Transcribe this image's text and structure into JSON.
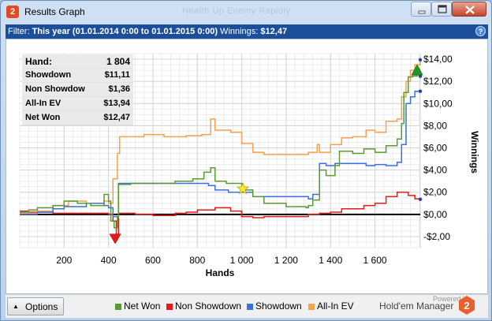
{
  "window": {
    "title": "Results Graph",
    "app_icon_glyph": "2",
    "background_title_text": "Health Up Enemy    Rapidly",
    "min_icon": "minimize-icon",
    "max_icon": "maximize-icon",
    "close_icon": "close-icon"
  },
  "filter": {
    "prefix": "Filter: ",
    "value": "This year (01.01.2014 0:00 to 01.01.2015 0:00)",
    "winnings_label": "  Winnings: ",
    "winnings_value": "$12,47",
    "help_glyph": "?"
  },
  "stats": [
    {
      "label": "Hand:",
      "value": "1 804"
    },
    {
      "label": "Showdown",
      "value": "$11,11"
    },
    {
      "label": "Non Showdown",
      "value": "$1,36"
    },
    {
      "label": "All-In EV",
      "value": "$13,94"
    },
    {
      "label": "Net Won",
      "value": "$12,47"
    }
  ],
  "bottom": {
    "options_label": "Options",
    "options_arrow": "▲",
    "powered_by": "Powered by",
    "brand": "Hold'em Manager",
    "brand_logo_glyph": "2"
  },
  "colors": {
    "net_won": "#5a9a31",
    "non_showdown": "#e51b1b",
    "showdown": "#3c6fe0",
    "all_in_ev": "#f5a04e",
    "filter_bar": "#1d4e9a"
  },
  "chart_data": {
    "type": "line",
    "xlabel": "Hands",
    "ylabel": "Winnings",
    "xlim": [
      0,
      1804
    ],
    "ylim": [
      -3,
      14.5
    ],
    "x_ticks": [
      200,
      400,
      600,
      800,
      1000,
      1200,
      1400,
      1600
    ],
    "x_tick_labels": [
      "200",
      "400",
      "600",
      "800",
      "1 000",
      "1 200",
      "1 400",
      "1 600"
    ],
    "y_ticks": [
      -2,
      0,
      2,
      4,
      6,
      8,
      10,
      12,
      14
    ],
    "y_tick_labels": [
      "-$2,00",
      "$0,00",
      "$2,00",
      "$4,00",
      "$6,00",
      "$8,00",
      "$10,00",
      "$12,00",
      "$14,00"
    ],
    "grid": true,
    "legend_position": "bottom",
    "series": [
      {
        "name": "Net Won",
        "color": "#5a9a31",
        "points": [
          [
            0,
            0.2
          ],
          [
            40,
            0.4
          ],
          [
            80,
            0.6
          ],
          [
            150,
            0.8
          ],
          [
            200,
            1.2
          ],
          [
            260,
            1.0
          ],
          [
            320,
            0.8
          ],
          [
            380,
            1.8
          ],
          [
            400,
            1.2
          ],
          [
            410,
            -0.6
          ],
          [
            425,
            -1.2
          ],
          [
            440,
            -0.3
          ],
          [
            445,
            2.7
          ],
          [
            500,
            2.8
          ],
          [
            600,
            2.8
          ],
          [
            700,
            3.0
          ],
          [
            780,
            3.2
          ],
          [
            830,
            3.8
          ],
          [
            860,
            4.2
          ],
          [
            880,
            3.0
          ],
          [
            930,
            2.8
          ],
          [
            1000,
            2.2
          ],
          [
            1050,
            1.6
          ],
          [
            1100,
            1.0
          ],
          [
            1200,
            0.7
          ],
          [
            1290,
            0.6
          ],
          [
            1300,
            0.8
          ],
          [
            1320,
            1.3
          ],
          [
            1350,
            4.0
          ],
          [
            1380,
            3.5
          ],
          [
            1420,
            4.4
          ],
          [
            1440,
            5.7
          ],
          [
            1500,
            5.5
          ],
          [
            1550,
            5.9
          ],
          [
            1600,
            5.6
          ],
          [
            1650,
            6.2
          ],
          [
            1700,
            6.8
          ],
          [
            1720,
            8.2
          ],
          [
            1730,
            11.0
          ],
          [
            1750,
            12.4
          ],
          [
            1770,
            12.47
          ],
          [
            1790,
            12.9
          ],
          [
            1804,
            12.47
          ]
        ]
      },
      {
        "name": "Non Showdown",
        "color": "#e51b1b",
        "points": [
          [
            0,
            0.3
          ],
          [
            40,
            0.2
          ],
          [
            80,
            0.2
          ],
          [
            150,
            0.1
          ],
          [
            250,
            0.1
          ],
          [
            350,
            0.1
          ],
          [
            400,
            0.0
          ],
          [
            420,
            -0.6
          ],
          [
            435,
            -1.8
          ],
          [
            445,
            0.1
          ],
          [
            520,
            0.0
          ],
          [
            600,
            -0.1
          ],
          [
            700,
            0.1
          ],
          [
            750,
            0.2
          ],
          [
            800,
            0.4
          ],
          [
            880,
            0.6
          ],
          [
            950,
            0.3
          ],
          [
            1000,
            -0.2
          ],
          [
            1050,
            -0.3
          ],
          [
            1100,
            -0.2
          ],
          [
            1200,
            -0.2
          ],
          [
            1300,
            0.0
          ],
          [
            1350,
            0.1
          ],
          [
            1400,
            0.2
          ],
          [
            1450,
            0.5
          ],
          [
            1500,
            0.5
          ],
          [
            1550,
            0.8
          ],
          [
            1600,
            1.0
          ],
          [
            1650,
            1.6
          ],
          [
            1700,
            2.0
          ],
          [
            1750,
            1.7
          ],
          [
            1780,
            1.4
          ],
          [
            1804,
            1.36
          ]
        ]
      },
      {
        "name": "Showdown",
        "color": "#3c6fe0",
        "points": [
          [
            0,
            0.0
          ],
          [
            80,
            0.2
          ],
          [
            150,
            0.5
          ],
          [
            200,
            0.7
          ],
          [
            300,
            1.0
          ],
          [
            380,
            0.8
          ],
          [
            400,
            0.6
          ],
          [
            420,
            -0.2
          ],
          [
            445,
            2.8
          ],
          [
            500,
            2.8
          ],
          [
            600,
            2.8
          ],
          [
            700,
            2.8
          ],
          [
            800,
            2.8
          ],
          [
            850,
            2.6
          ],
          [
            880,
            2.2
          ],
          [
            940,
            2.0
          ],
          [
            1000,
            2.0
          ],
          [
            1050,
            1.6
          ],
          [
            1100,
            1.6
          ],
          [
            1200,
            1.6
          ],
          [
            1300,
            1.4
          ],
          [
            1320,
            1.8
          ],
          [
            1350,
            4.6
          ],
          [
            1380,
            4.4
          ],
          [
            1420,
            4.6
          ],
          [
            1460,
            4.6
          ],
          [
            1500,
            4.6
          ],
          [
            1560,
            4.4
          ],
          [
            1600,
            4.5
          ],
          [
            1650,
            4.4
          ],
          [
            1700,
            4.7
          ],
          [
            1720,
            6.3
          ],
          [
            1740,
            10.0
          ],
          [
            1760,
            10.6
          ],
          [
            1780,
            11.1
          ],
          [
            1804,
            11.11
          ]
        ]
      },
      {
        "name": "All-In EV",
        "color": "#f5a04e",
        "points": [
          [
            0,
            0.1
          ],
          [
            80,
            0.3
          ],
          [
            150,
            0.8
          ],
          [
            220,
            1.2
          ],
          [
            300,
            1.0
          ],
          [
            380,
            1.2
          ],
          [
            400,
            1.0
          ],
          [
            420,
            3.2
          ],
          [
            440,
            5.5
          ],
          [
            450,
            7.0
          ],
          [
            500,
            7.0
          ],
          [
            560,
            7.2
          ],
          [
            650,
            7.0
          ],
          [
            750,
            7.1
          ],
          [
            820,
            7.2
          ],
          [
            860,
            8.6
          ],
          [
            880,
            7.6
          ],
          [
            950,
            7.4
          ],
          [
            1000,
            6.4
          ],
          [
            1050,
            5.6
          ],
          [
            1100,
            5.4
          ],
          [
            1200,
            5.4
          ],
          [
            1300,
            5.6
          ],
          [
            1340,
            6.3
          ],
          [
            1350,
            5.6
          ],
          [
            1400,
            6.3
          ],
          [
            1450,
            6.9
          ],
          [
            1500,
            7.0
          ],
          [
            1560,
            7.6
          ],
          [
            1600,
            7.4
          ],
          [
            1650,
            8.4
          ],
          [
            1700,
            8.6
          ],
          [
            1720,
            10.6
          ],
          [
            1740,
            12.0
          ],
          [
            1760,
            13.0
          ],
          [
            1780,
            13.5
          ],
          [
            1804,
            13.94
          ]
        ]
      }
    ],
    "markers": [
      {
        "name": "min-marker",
        "shape": "down-triangle",
        "color": "#e21a1a",
        "x": 430,
        "y": -2.2
      },
      {
        "name": "max-marker",
        "shape": "up-triangle",
        "color": "#1f9a28",
        "x": 1790,
        "y": 13.0
      },
      {
        "name": "star-marker",
        "shape": "star",
        "color": "#ffe92e",
        "x": 1005,
        "y": 2.3
      }
    ],
    "end_dots": [
      {
        "series": "All-In EV",
        "y": 13.94
      },
      {
        "series": "Net Won",
        "y": 12.47
      },
      {
        "series": "Showdown",
        "y": 11.11
      },
      {
        "series": "Non Showdown",
        "y": 1.36
      }
    ]
  }
}
